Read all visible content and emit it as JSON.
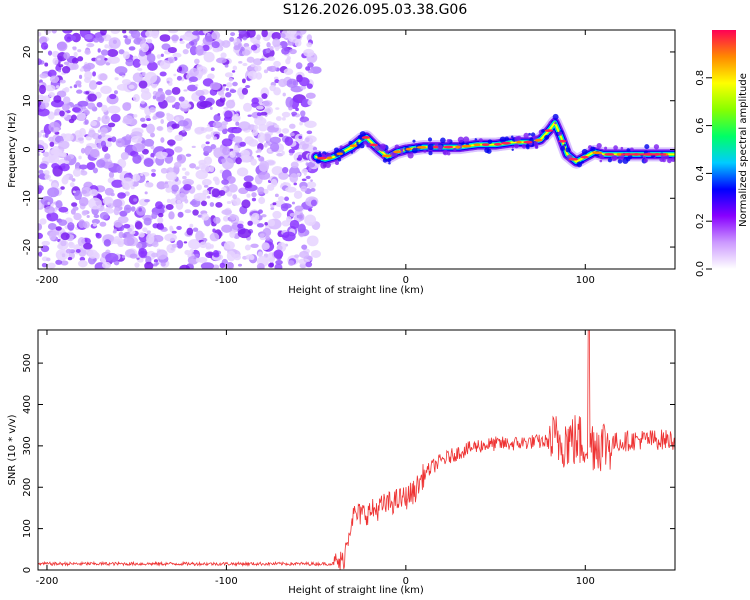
{
  "title": "S126.2026.095.03.38.G06",
  "chart_data": [
    {
      "type": "heatmap",
      "xlabel": "Height of straight line (km)",
      "ylabel": "Frequency (Hz)",
      "xlim": [
        -205,
        150
      ],
      "ylim": [
        -24.5,
        24.5
      ],
      "xticks": [
        -200,
        -100,
        0,
        100
      ],
      "yticks": [
        -20,
        -10,
        0,
        10,
        20
      ],
      "noise_region_x": [
        -205,
        -50
      ],
      "ridge": {
        "x": [
          -50,
          -45,
          -40,
          -35,
          -30,
          -25,
          -22,
          -18,
          -15,
          -10,
          -5,
          0,
          10,
          20,
          30,
          40,
          50,
          60,
          70,
          75,
          80,
          83,
          86,
          90,
          95,
          100,
          105,
          110,
          120,
          130,
          140,
          150
        ],
        "freq": [
          -1.5,
          -2,
          -1.5,
          -0.5,
          0.5,
          2,
          2.5,
          1,
          0,
          -1.5,
          -0.5,
          0,
          0.5,
          0.5,
          0.5,
          1,
          1,
          1.5,
          1.5,
          2,
          4,
          5.5,
          3,
          -1,
          -2.5,
          -1.5,
          -0.5,
          -1,
          -1,
          -1,
          -1,
          -1
        ]
      },
      "colorbar": {
        "label": "Normalized spectral amplitude",
        "range": [
          0,
          1
        ],
        "ticks": [
          "0.0",
          "0.2",
          "0.4",
          "0.6",
          "0.8"
        ],
        "colors": [
          "#ffffff",
          "#cc99ff",
          "#8800ff",
          "#0000ff",
          "#00ccff",
          "#00ff66",
          "#88ff00",
          "#ffff00",
          "#ff8800",
          "#ff0055"
        ]
      }
    },
    {
      "type": "line",
      "xlabel": "Height of straight line (km)",
      "ylabel": "SNR (10 * v/v)",
      "xlim": [
        -205,
        150
      ],
      "ylim": [
        0,
        580
      ],
      "xticks": [
        -200,
        -100,
        0,
        100
      ],
      "yticks": [
        0,
        100,
        200,
        300,
        400,
        500
      ],
      "color": "#ee3333",
      "envelope": {
        "x": [
          -205,
          -40,
          -35,
          -30,
          -20,
          -10,
          0,
          5,
          10,
          15,
          20,
          30,
          40,
          50,
          60,
          70,
          80,
          90,
          100,
          110,
          120,
          130,
          140,
          150
        ],
        "y": [
          15,
          15,
          20,
          130,
          140,
          160,
          175,
          190,
          230,
          250,
          265,
          285,
          300,
          305,
          305,
          310,
          310,
          315,
          310,
          305,
          310,
          315,
          315,
          315
        ]
      },
      "spike": {
        "x": 102,
        "y": 580
      }
    }
  ]
}
